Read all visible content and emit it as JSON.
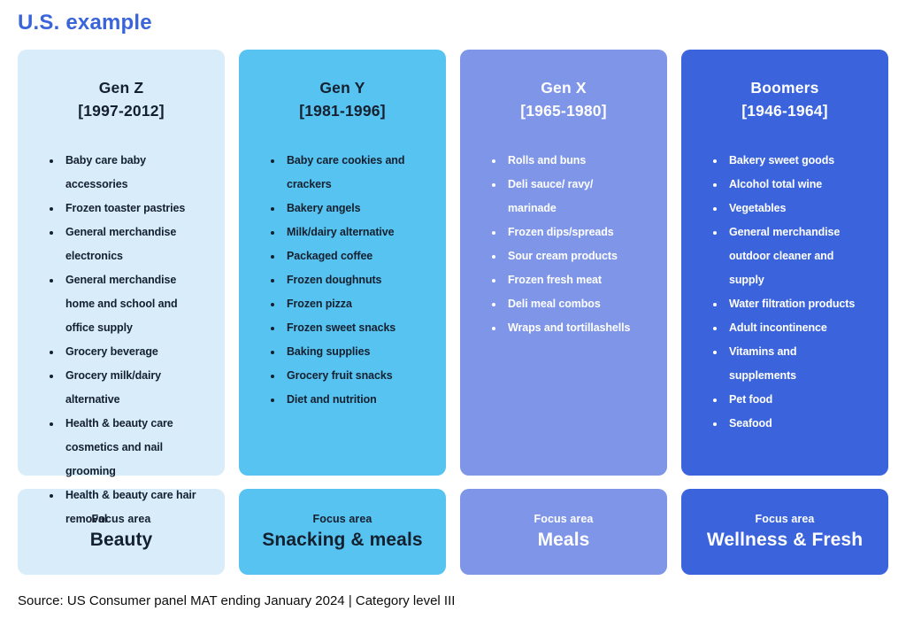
{
  "page": {
    "title": "U.S. example",
    "source": "Source: US Consumer panel MAT ending January 2024 | Category level III"
  },
  "accent_color": "#3a64d9",
  "columns": [
    {
      "name": "Gen Z",
      "years": "[1997-2012]",
      "items": [
        "Baby care baby accessories",
        "Frozen toaster pastries",
        "General merchandise electronics",
        "General merchandise home and school and office supply",
        "Grocery beverage",
        "Grocery milk/dairy alternative",
        "Health & beauty care cosmetics and nail grooming",
        "Health & beauty care hair removal"
      ],
      "focus": {
        "label": "Focus area",
        "value": "Beauty"
      },
      "colors": {
        "bg": "#d8ecf9",
        "fg": "#15202f"
      }
    },
    {
      "name": "Gen Y",
      "years": "[1981-1996]",
      "items": [
        "Baby care cookies and crackers",
        "Bakery angels",
        "Milk/dairy alternative",
        "Packaged coffee",
        "Frozen doughnuts",
        "Frozen pizza",
        "Frozen sweet snacks",
        "Baking supplies",
        "Grocery fruit snacks",
        "Diet and nutrition"
      ],
      "focus": {
        "label": "Focus area",
        "value": "Snacking & meals"
      },
      "colors": {
        "bg": "#57c3f1",
        "fg": "#15202f"
      }
    },
    {
      "name": "Gen X",
      "years": "[1965-1980]",
      "items": [
        "Rolls and buns",
        "Deli sauce/ ravy/ marinade",
        "Frozen dips/spreads",
        "Sour cream products",
        "Frozen fresh meat",
        "Deli meal combos",
        "Wraps and tortillashells"
      ],
      "focus": {
        "label": "Focus area",
        "value": "Meals"
      },
      "colors": {
        "bg": "#7e95e8",
        "fg": "#ffffff"
      }
    },
    {
      "name": "Boomers",
      "years": "[1946-1964]",
      "items": [
        "Bakery sweet goods",
        "Alcohol total wine",
        "Vegetables",
        "General merchandise outdoor cleaner and supply",
        "Water filtration products",
        "Adult incontinence",
        "Vitamins and supplements",
        "Pet food",
        "Seafood"
      ],
      "focus": {
        "label": "Focus area",
        "value": "Wellness & Fresh"
      },
      "colors": {
        "bg": "#3a63dc",
        "fg": "#ffffff"
      }
    }
  ]
}
